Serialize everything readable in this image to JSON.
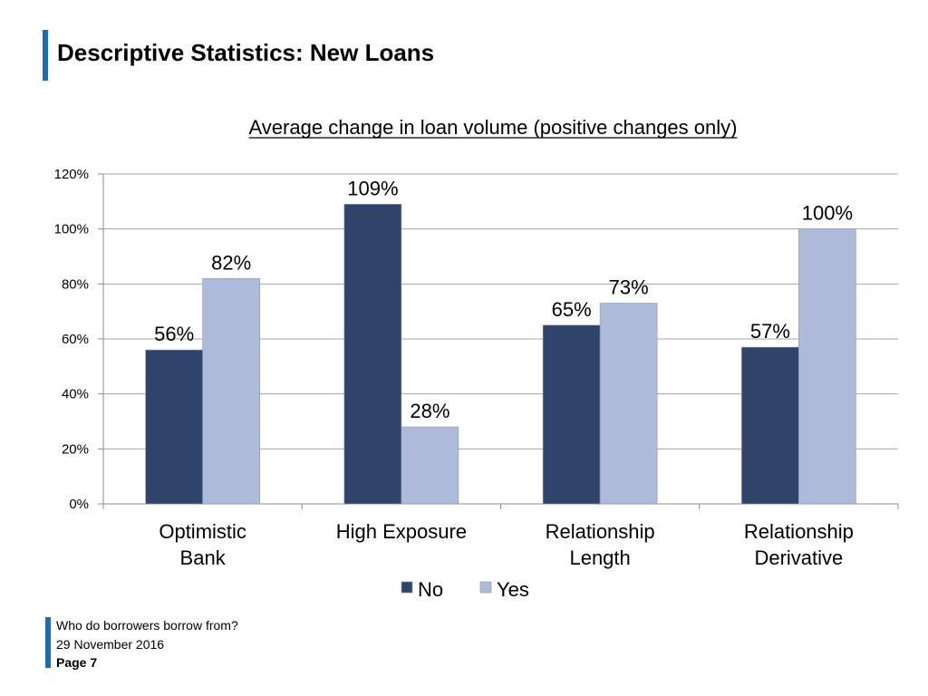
{
  "slide": {
    "title": "Descriptive Statistics: New Loans",
    "accent_color": "#1b6cb0"
  },
  "chart_data": {
    "type": "bar",
    "title": "Average change in loan volume (positive changes only)",
    "categories": [
      [
        "Optimistic",
        "Bank"
      ],
      [
        "High Exposure"
      ],
      [
        "Relationship",
        "Length"
      ],
      [
        "Relationship",
        "Derivative"
      ]
    ],
    "series": [
      {
        "name": "No",
        "values": [
          56,
          109,
          65,
          57
        ],
        "labels": [
          "56%",
          "109%",
          "65%",
          "57%"
        ],
        "color": "#2f4468"
      },
      {
        "name": "Yes",
        "values": [
          82,
          28,
          73,
          100
        ],
        "labels": [
          "82%",
          "28%",
          "73%",
          "100%"
        ],
        "color": "#adbad9"
      }
    ],
    "y_ticks": [
      "0%",
      "20%",
      "40%",
      "60%",
      "80%",
      "100%",
      "120%"
    ],
    "ylim": [
      0,
      120
    ],
    "grid": true,
    "legend_position": "bottom"
  },
  "footer": {
    "line1": "Who do borrowers borrow from?",
    "line2": "29 November 2016",
    "page": "Page 7"
  }
}
